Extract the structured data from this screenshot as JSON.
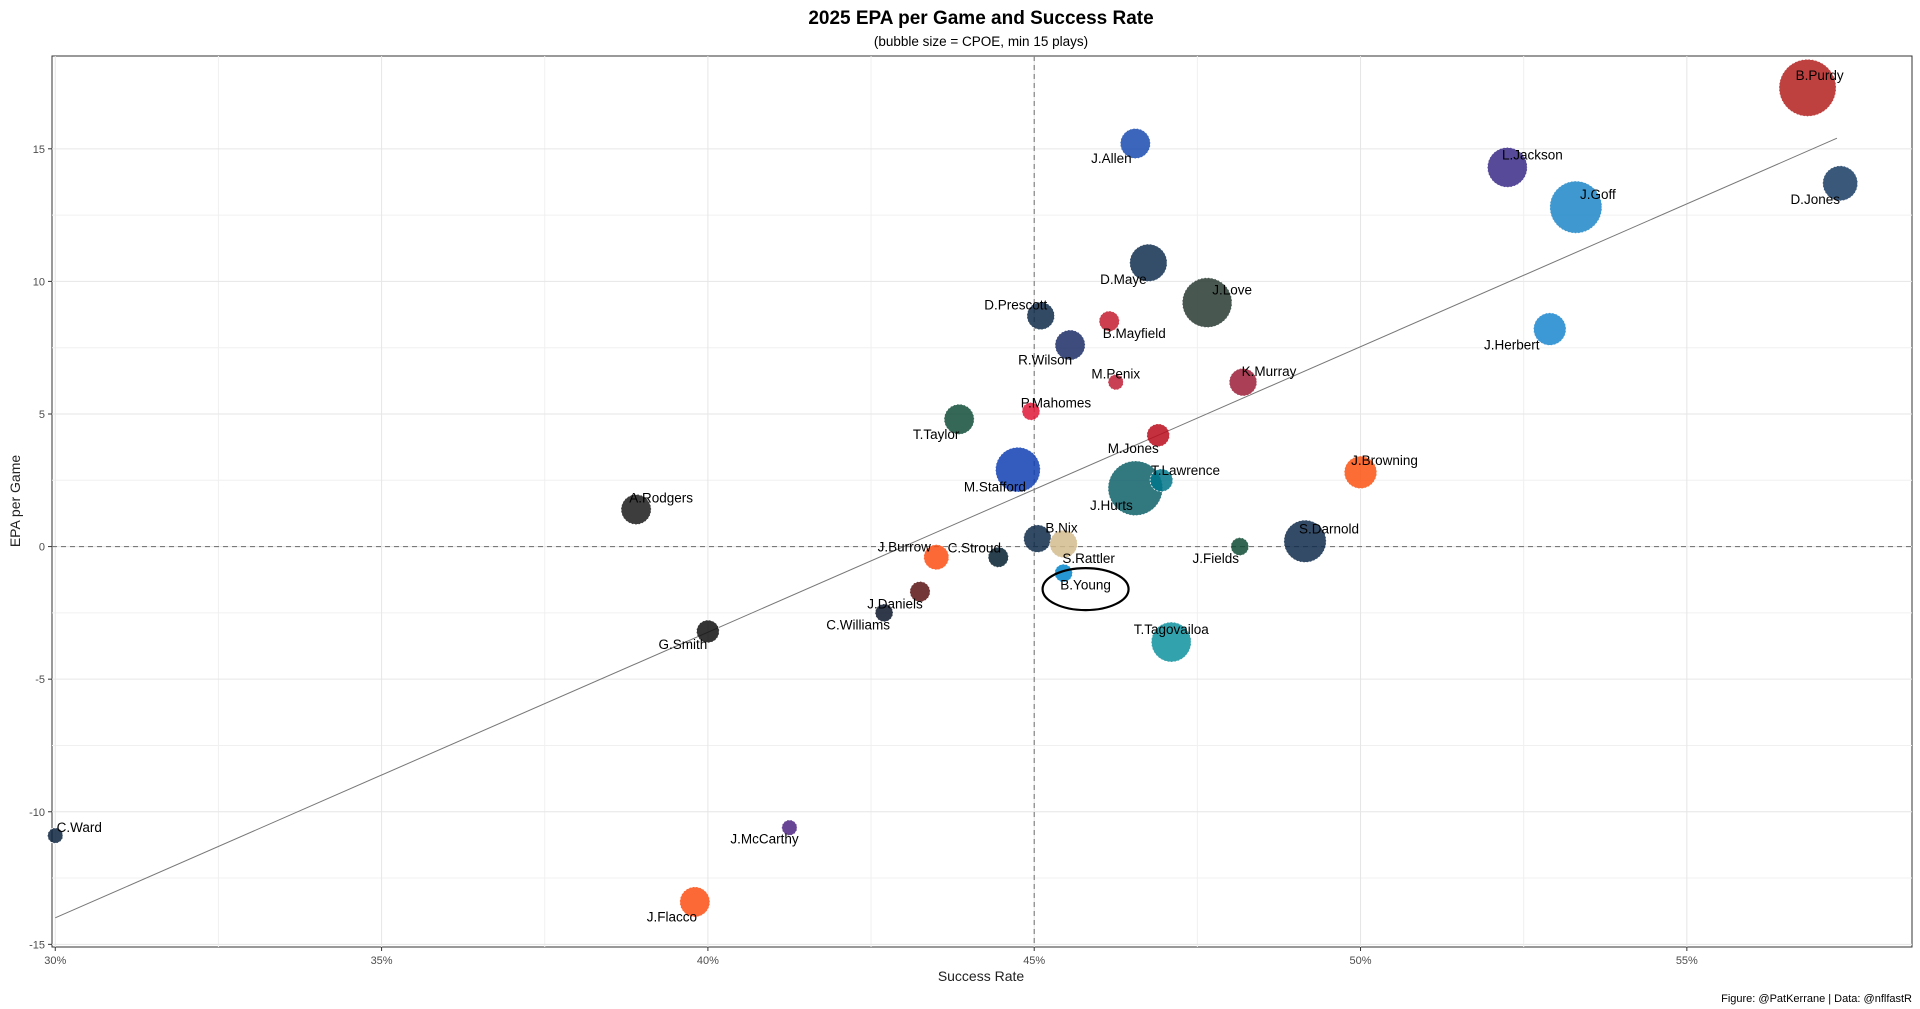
{
  "chart_data": {
    "type": "scatter",
    "title": "2025 EPA per Game and Success Rate",
    "subtitle": "(bubble size = CPOE, min 15 plays)",
    "xlabel": "Success Rate",
    "ylabel": "EPA per Game",
    "caption": "Figure: @PatKerrane | Data: @nflfastR",
    "xlim": [
      0.2995,
      0.5845
    ],
    "ylim": [
      -15.1,
      18.5
    ],
    "x_ticks": [
      0.3,
      0.35,
      0.4,
      0.45,
      0.5,
      0.55
    ],
    "x_tick_labels": [
      "30%",
      "35%",
      "40%",
      "45%",
      "50%",
      "55%"
    ],
    "y_ticks": [
      -15,
      -10,
      -5,
      0,
      5,
      10,
      15
    ],
    "y_tick_labels": [
      "-15",
      "-10",
      "-5",
      "0",
      "5",
      "10",
      "15"
    ],
    "grid": true,
    "reference_lines": {
      "x": 0.45,
      "y": 0
    },
    "trend_line": {
      "x": [
        0.3,
        0.573
      ],
      "y": [
        -14.0,
        15.4
      ]
    },
    "highlight": "B.Young",
    "points": [
      {
        "name": "B.Purdy",
        "x": 0.5685,
        "y": 17.3,
        "size": 10,
        "color": "#B3201F"
      },
      {
        "name": "L.Jackson",
        "x": 0.5225,
        "y": 14.3,
        "size": 6.5,
        "color": "#3A2A86"
      },
      {
        "name": "J.Goff",
        "x": 0.533,
        "y": 12.8,
        "size": 9,
        "color": "#1D86C8"
      },
      {
        "name": "D.Jones",
        "x": 0.5735,
        "y": 13.7,
        "size": 5.5,
        "color": "#173C63"
      },
      {
        "name": "J.Allen",
        "x": 0.4655,
        "y": 15.2,
        "size": 4.5,
        "color": "#1A4BB0"
      },
      {
        "name": "D.Maye",
        "x": 0.4675,
        "y": 10.7,
        "size": 6,
        "color": "#112E4F"
      },
      {
        "name": "J.Love",
        "x": 0.4765,
        "y": 9.2,
        "size": 8.5,
        "color": "#293A33"
      },
      {
        "name": "D.Prescott",
        "x": 0.451,
        "y": 8.7,
        "size": 4,
        "color": "#0E2A48"
      },
      {
        "name": "B.Mayfield",
        "x": 0.4615,
        "y": 8.5,
        "size": 2.5,
        "color": "#C41D2F"
      },
      {
        "name": "R.Wilson",
        "x": 0.4555,
        "y": 7.6,
        "size": 4.5,
        "color": "#1B2C66"
      },
      {
        "name": "J.Herbert",
        "x": 0.529,
        "y": 8.2,
        "size": 5,
        "color": "#1B86CF"
      },
      {
        "name": "M.Penix",
        "x": 0.4625,
        "y": 6.2,
        "size": 1.5,
        "color": "#BF1D35"
      },
      {
        "name": "K.Murray",
        "x": 0.482,
        "y": 6.2,
        "size": 4,
        "color": "#9B1D38"
      },
      {
        "name": "P.Mahomes",
        "x": 0.4495,
        "y": 5.1,
        "size": 2,
        "color": "#E11838"
      },
      {
        "name": "T.Taylor",
        "x": 0.4385,
        "y": 4.8,
        "size": 4.5,
        "color": "#124E3A"
      },
      {
        "name": "M.Jones",
        "x": 0.469,
        "y": 4.2,
        "size": 3,
        "color": "#BA0C1B"
      },
      {
        "name": "M.Stafford",
        "x": 0.4475,
        "y": 2.9,
        "size": 7.5,
        "color": "#113FB3"
      },
      {
        "name": "T.Lawrence",
        "x": 0.4695,
        "y": 2.5,
        "size": 3,
        "color": "#00768A"
      },
      {
        "name": "J.Hurts",
        "x": 0.4655,
        "y": 2.2,
        "size": 9.5,
        "color": "#0E6068"
      },
      {
        "name": "J.Browning",
        "x": 0.5,
        "y": 2.8,
        "size": 5,
        "color": "#FC5212"
      },
      {
        "name": "A.Rodgers",
        "x": 0.389,
        "y": 1.4,
        "size": 4.5,
        "color": "#1B1B1B"
      },
      {
        "name": "B.Nix",
        "x": 0.4505,
        "y": 0.3,
        "size": 4,
        "color": "#0E2A48"
      },
      {
        "name": "S.Rattler",
        "x": 0.4545,
        "y": 0.1,
        "size": 4,
        "color": "#D4BC8D"
      },
      {
        "name": "S.Darnold",
        "x": 0.4915,
        "y": 0.2,
        "size": 7,
        "color": "#0F2B4C"
      },
      {
        "name": "J.Fields",
        "x": 0.4815,
        "y": 0.0,
        "size": 2,
        "color": "#0F4C35"
      },
      {
        "name": "J.Burrow",
        "x": 0.435,
        "y": -0.4,
        "size": 3.5,
        "color": "#FB4F14"
      },
      {
        "name": "C.Stroud",
        "x": 0.4445,
        "y": -0.4,
        "size": 2.5,
        "color": "#03202F"
      },
      {
        "name": "B.Young",
        "x": 0.4545,
        "y": -1.0,
        "size": 2,
        "color": "#0085CA"
      },
      {
        "name": "J.Daniels",
        "x": 0.4325,
        "y": -1.7,
        "size": 2.5,
        "color": "#5A1414"
      },
      {
        "name": "C.Williams",
        "x": 0.427,
        "y": -2.5,
        "size": 2,
        "color": "#0B162A"
      },
      {
        "name": "G.Smith",
        "x": 0.4,
        "y": -3.2,
        "size": 3,
        "color": "#111111"
      },
      {
        "name": "T.Tagovailoa",
        "x": 0.471,
        "y": -3.6,
        "size": 6.5,
        "color": "#0E929D"
      },
      {
        "name": "C.Ward",
        "x": 0.3,
        "y": -10.9,
        "size": 1.5,
        "color": "#0C2340"
      },
      {
        "name": "J.McCarthy",
        "x": 0.4125,
        "y": -10.6,
        "size": 1.5,
        "color": "#4F2683"
      },
      {
        "name": "J.Flacco",
        "x": 0.398,
        "y": -13.4,
        "size": 4.5,
        "color": "#FB4F14"
      }
    ]
  }
}
